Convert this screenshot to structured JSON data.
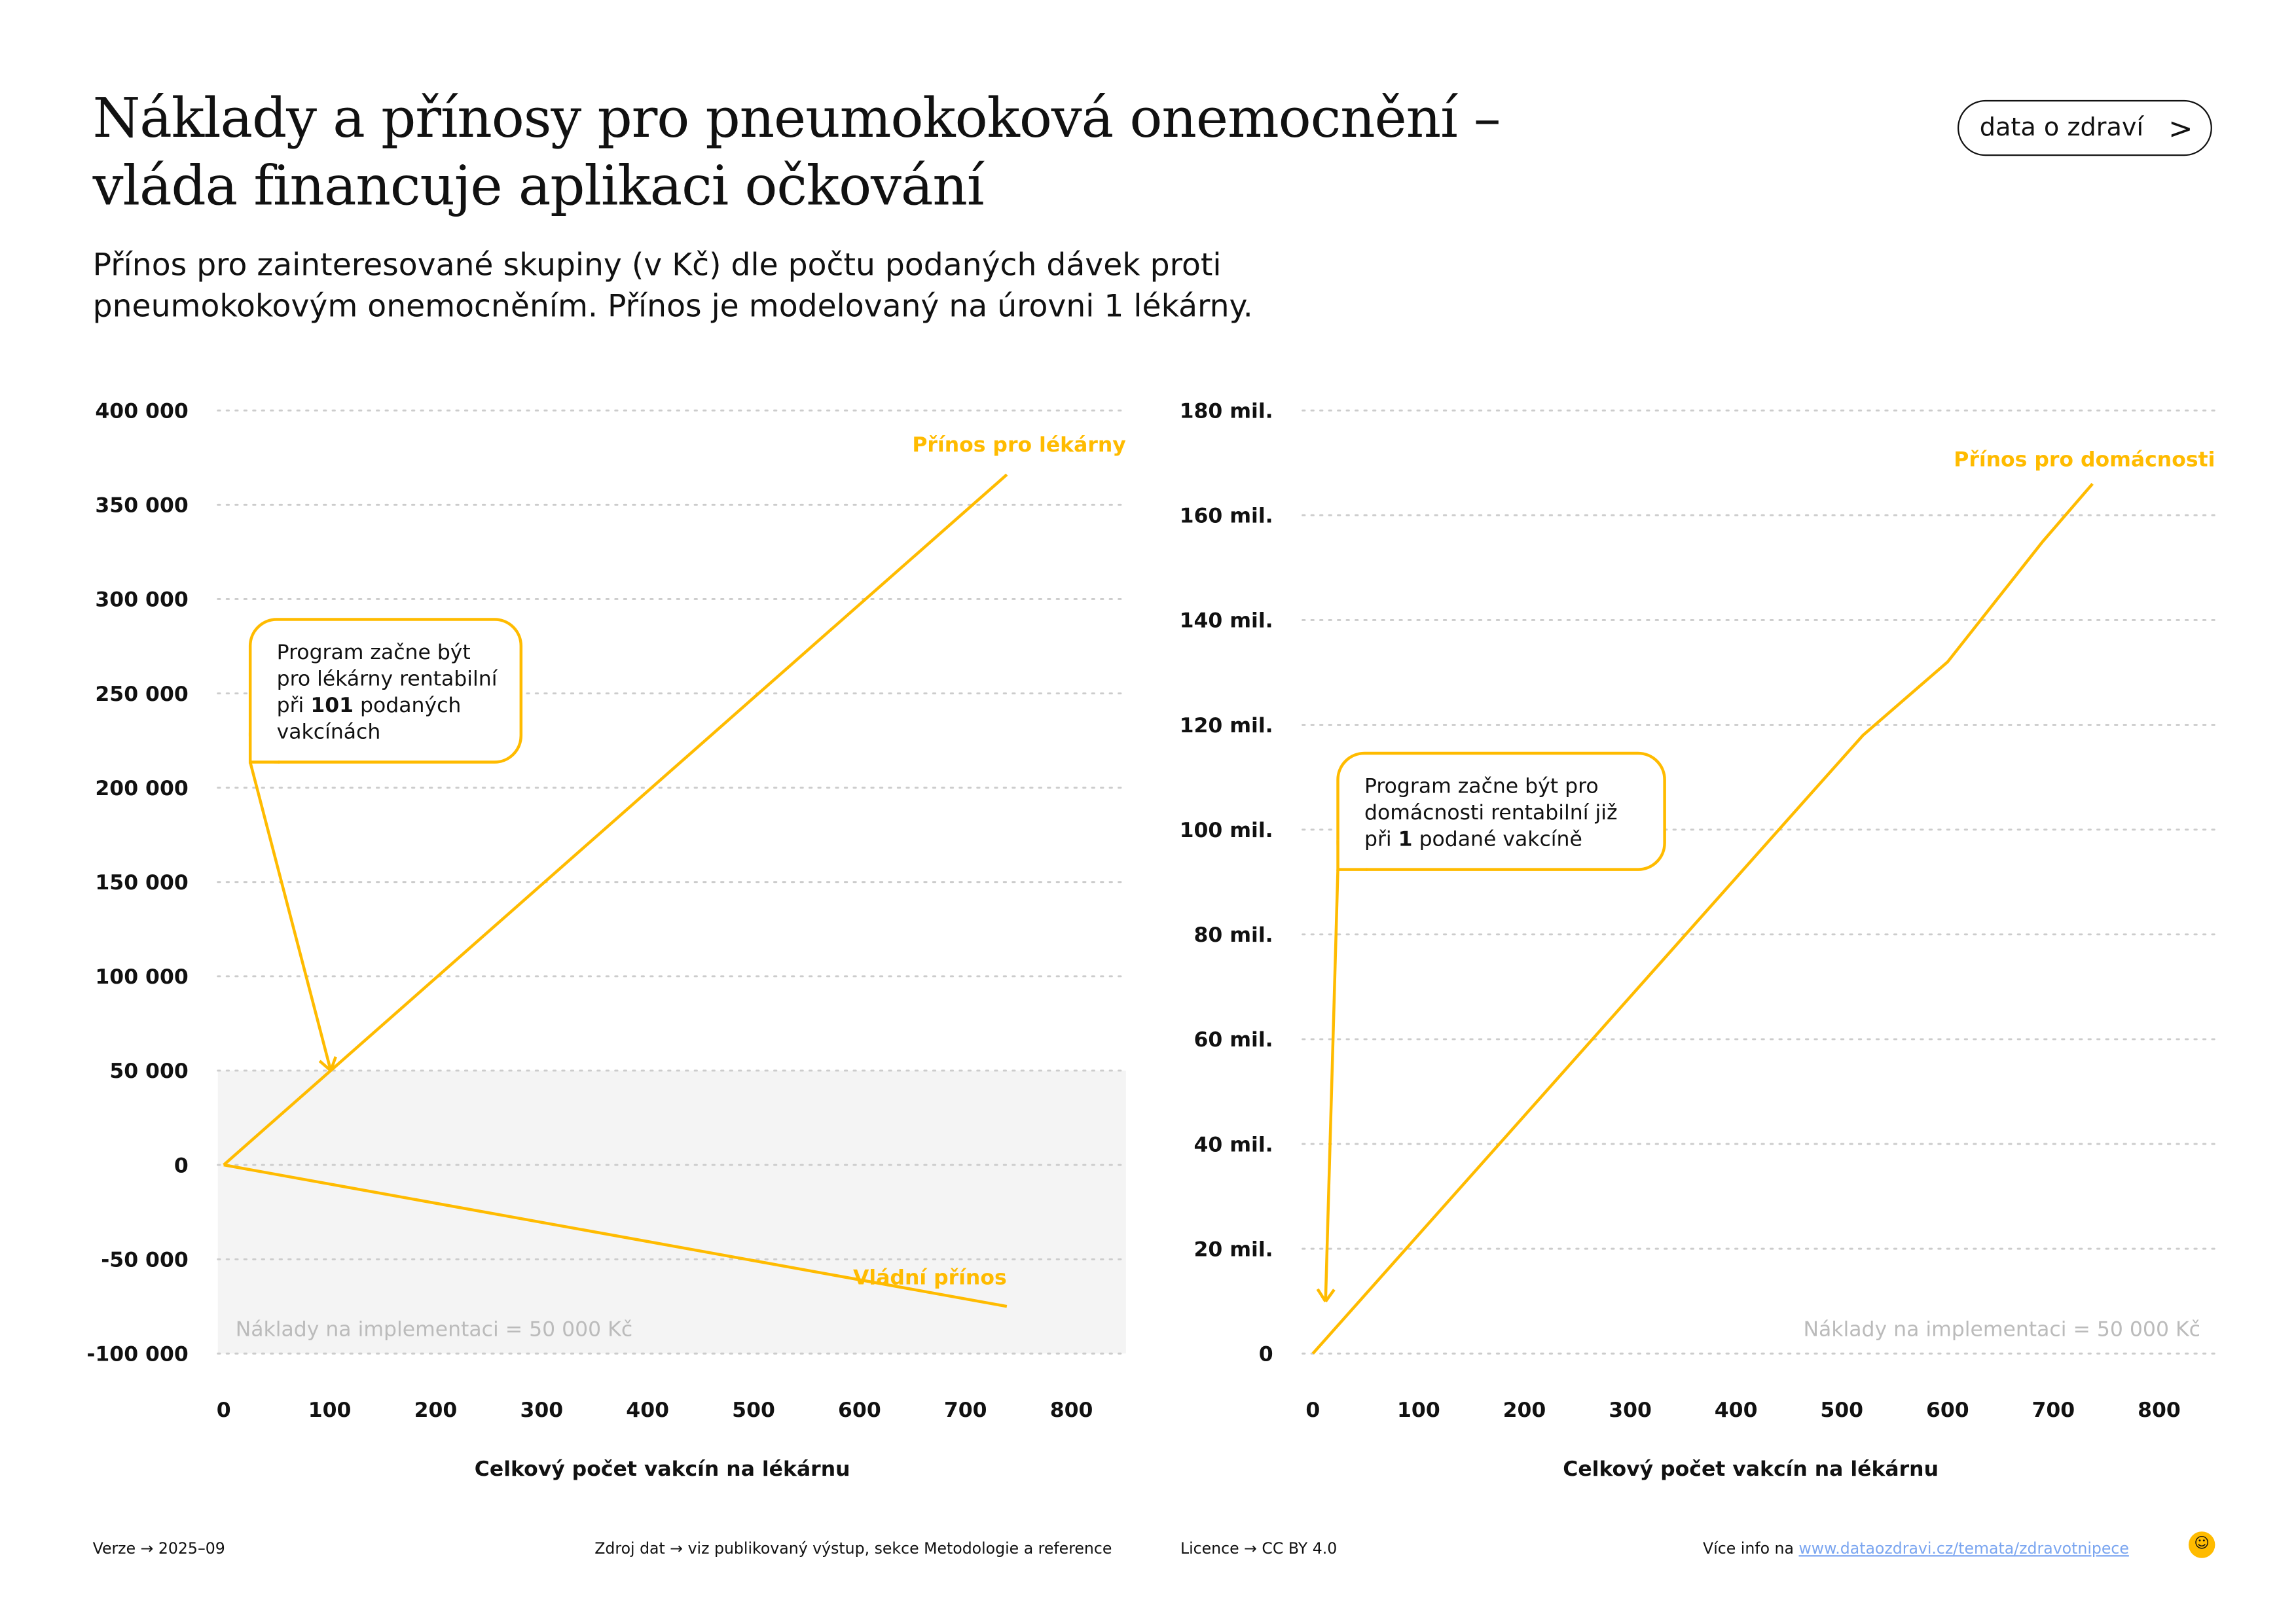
{
  "header": {
    "title_line1": "Náklady a přínosy pro pneumokoková onemocnění –",
    "title_line2": "vláda financuje aplikaci očkování",
    "subtitle": "Přínos pro zainteresované skupiny (v Kč) dle počtu podaných dávek proti pneumokokovým onemocněním. Přínos je modelovaný na úrovni 1 lékárny.",
    "badge": "data o zdraví",
    "badge_icon": "chevron-right-icon"
  },
  "colors": {
    "accent": "#FFBB00",
    "grid": "#cccccc",
    "shade": "#f4f4f4",
    "muted": "#bbbbbb"
  },
  "chart_data": [
    {
      "type": "line",
      "xlabel": "Celkový počet vakcín na lékárnu",
      "ylabel": "",
      "xlim": [
        0,
        800
      ],
      "ylim": [
        -100000,
        400000
      ],
      "xticks": [
        "0",
        "100",
        "200",
        "300",
        "400",
        "500",
        "600",
        "700",
        "800"
      ],
      "yticks": [
        "400 000",
        "350 000",
        "300 000",
        "250 000",
        "200 000",
        "150 000",
        "100 000",
        "50 000",
        "0",
        "-50 000",
        "-100 000"
      ],
      "series": [
        {
          "name": "Přínos pro lékárny",
          "x": [
            0,
            739
          ],
          "y": [
            0,
            366000
          ]
        },
        {
          "name": "Vládní přínos",
          "x": [
            0,
            739
          ],
          "y": [
            0,
            -75000
          ]
        }
      ],
      "shaded_region": {
        "ymin": -100000,
        "ymax": 50000,
        "label": "Náklady na implementaci = 50 000 Kč"
      },
      "annotation": {
        "lines": [
          "Program začne být",
          "pro lékárny rentabilní",
          "při ",
          " podaných",
          "vakcínách"
        ],
        "bold": "101",
        "target": [
          101,
          50000
        ]
      }
    },
    {
      "type": "line",
      "xlabel": "Celkový počet vakcín na lékárnu",
      "ylabel": "",
      "xlim": [
        0,
        800
      ],
      "ylim": [
        0,
        180
      ],
      "xticks": [
        "0",
        "100",
        "200",
        "300",
        "400",
        "500",
        "600",
        "700",
        "800"
      ],
      "yticks": [
        "180 mil.",
        "160 mil.",
        "140 mil.",
        "120 mil.",
        "100 mil.",
        "80 mil.",
        "60 mil.",
        "40 mil.",
        "20 mil.",
        "0"
      ],
      "series": [
        {
          "name": "Přínos pro domácnosti",
          "x": [
            0,
            467,
            520,
            600,
            690,
            737
          ],
          "y": [
            0,
            106,
            118,
            132,
            155,
            166
          ]
        }
      ],
      "cost_label": "Náklady na implementaci = 50 000 Kč",
      "annotation": {
        "lines": [
          "Program začne být pro",
          "domácnosti rentabilní již",
          "při ",
          " podané vakcíně"
        ],
        "bold": "1",
        "target": [
          12,
          6
        ]
      }
    }
  ],
  "footer": {
    "version": "Verze → 2025–09",
    "source": "Zdroj dat → viz publikovaný výstup, sekce Metodologie a reference",
    "license": "Licence → CC BY 4.0",
    "more": "Více info na ",
    "link": "www.dataozdravi.cz/temata/zdravotnipece"
  }
}
